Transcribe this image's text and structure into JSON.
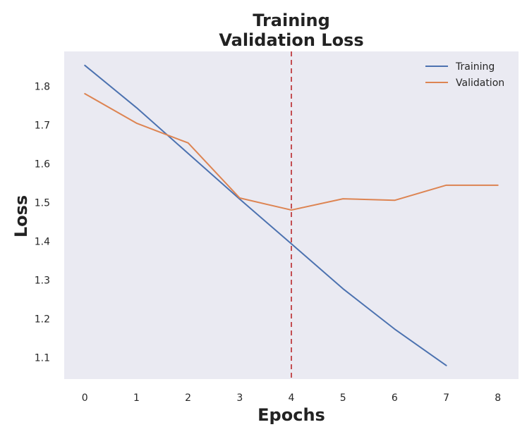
{
  "chart_data": {
    "type": "line",
    "title": [
      "Training",
      "Validation Loss"
    ],
    "xlabel": "Epochs",
    "ylabel": "Loss",
    "xlim": [
      -0.4,
      8.4
    ],
    "ylim": [
      1.045,
      1.89
    ],
    "x_ticks": [
      0,
      1,
      2,
      3,
      4,
      5,
      6,
      7,
      8
    ],
    "y_ticks": [
      1.1,
      1.2,
      1.3,
      1.4,
      1.5,
      1.6,
      1.7,
      1.8
    ],
    "grid": false,
    "legend_position": "top-right",
    "series": [
      {
        "name": "Training",
        "color": "#4c72b0",
        "x": [
          0,
          1,
          2,
          3,
          4,
          5,
          6,
          7
        ],
        "y": [
          1.854,
          1.745,
          1.627,
          1.509,
          1.394,
          1.278,
          1.174,
          1.08
        ]
      },
      {
        "name": "Validation",
        "color": "#dd8452",
        "x": [
          0,
          1,
          2,
          3,
          4,
          5,
          6,
          7,
          8
        ],
        "y": [
          1.781,
          1.705,
          1.654,
          1.512,
          1.481,
          1.51,
          1.506,
          1.545,
          1.545
        ]
      }
    ],
    "vline": {
      "x": 4,
      "color": "#c44e52",
      "style": "dashed"
    },
    "background_color": "#eaeaf2"
  }
}
